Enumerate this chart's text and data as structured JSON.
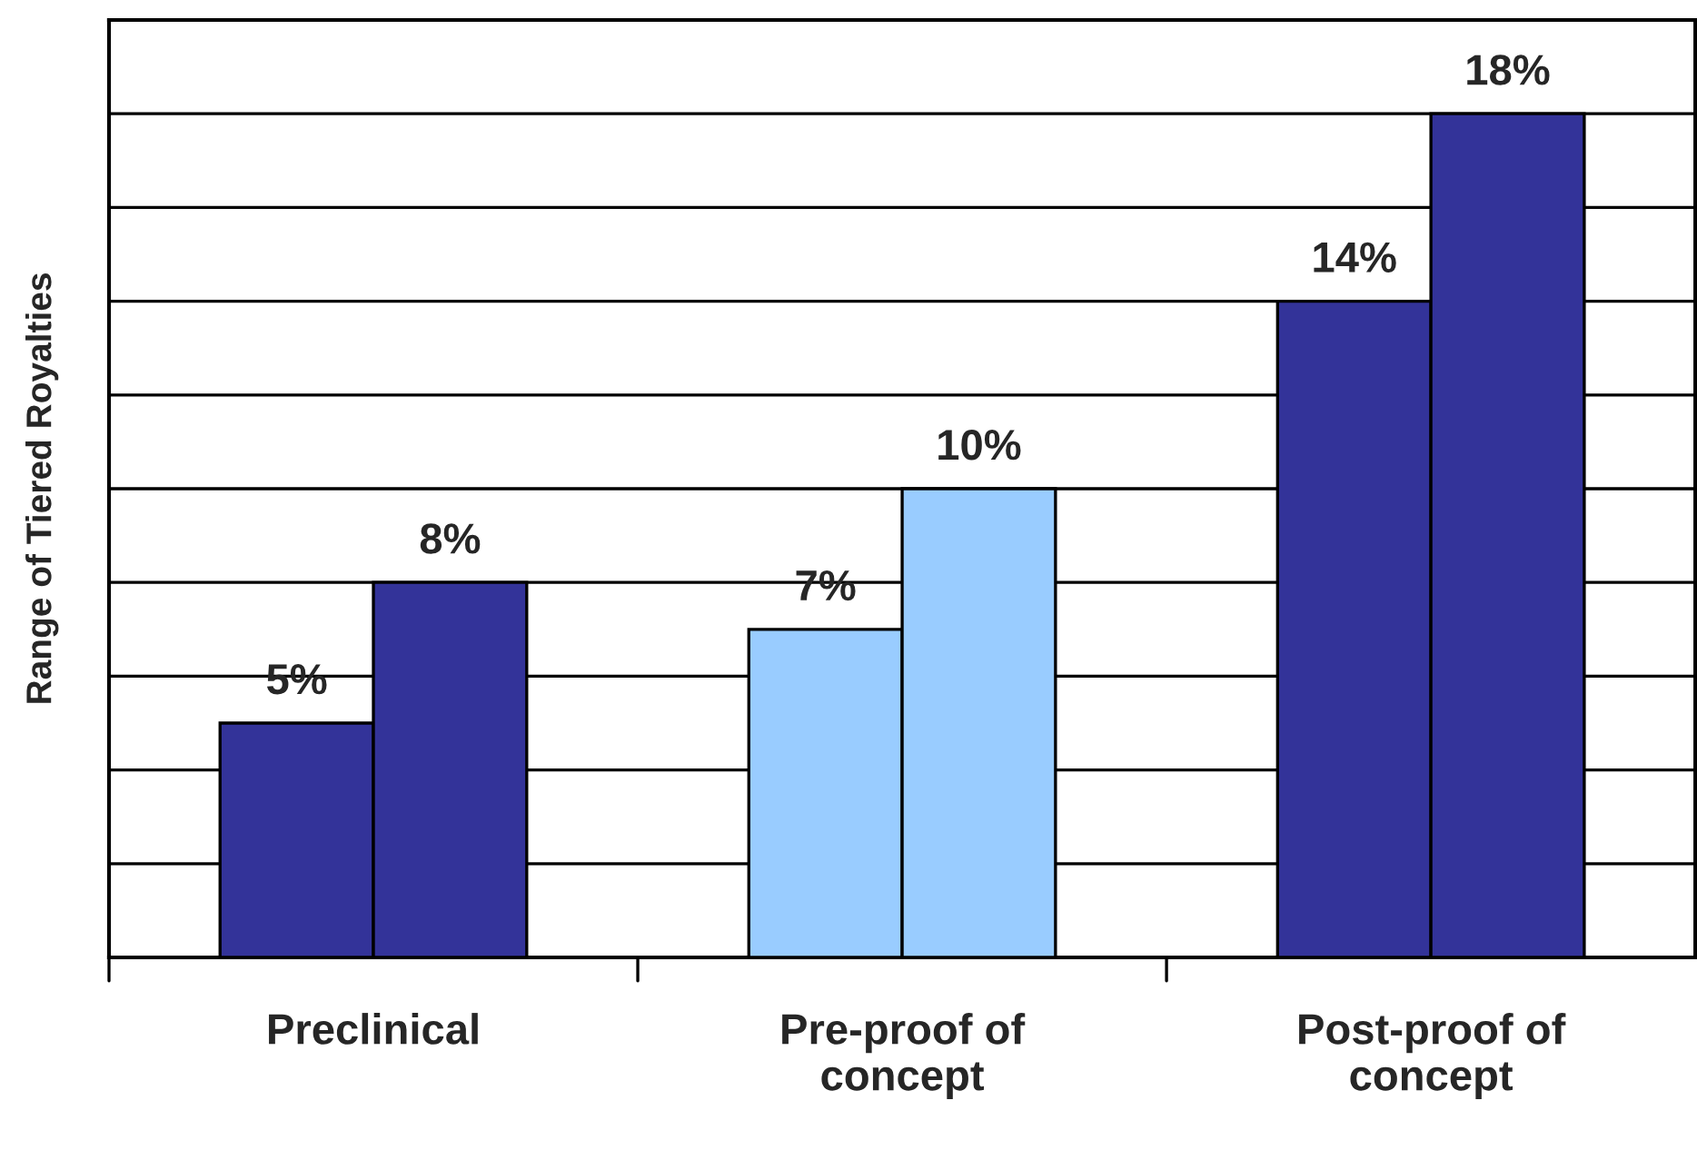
{
  "chart_data": {
    "type": "bar",
    "ylabel": "Range of Tiered Royalties",
    "categories": [
      "Preclinical",
      "Pre-proof of\nconcept",
      "Post-proof of\nconcept"
    ],
    "series": [
      {
        "colors": [
          "#333399",
          "#99ccff",
          "#333399"
        ],
        "values": [
          5,
          7,
          14
        ],
        "value_labels": [
          "5%",
          "7%",
          "14%"
        ]
      },
      {
        "colors": [
          "#333399",
          "#99ccff",
          "#333399"
        ],
        "values": [
          8,
          10,
          18
        ],
        "value_labels": [
          "8%",
          "10%",
          "18%"
        ]
      }
    ],
    "ylim": [
      0,
      20
    ],
    "yticks": [
      {
        "value": 0,
        "label": null
      },
      {
        "value": 2,
        "label": null
      },
      {
        "value": 4,
        "label": null
      },
      {
        "value": 6,
        "label": null
      },
      {
        "value": 8,
        "label": null
      },
      {
        "value": 10,
        "label": null
      },
      {
        "value": 12,
        "label": null
      },
      {
        "value": 14,
        "label": null
      },
      {
        "value": 16,
        "label": null
      },
      {
        "value": 18,
        "label": null
      },
      {
        "value": 20,
        "label": null
      }
    ],
    "grid": "y",
    "tick_labels": "x",
    "legend": false
  }
}
